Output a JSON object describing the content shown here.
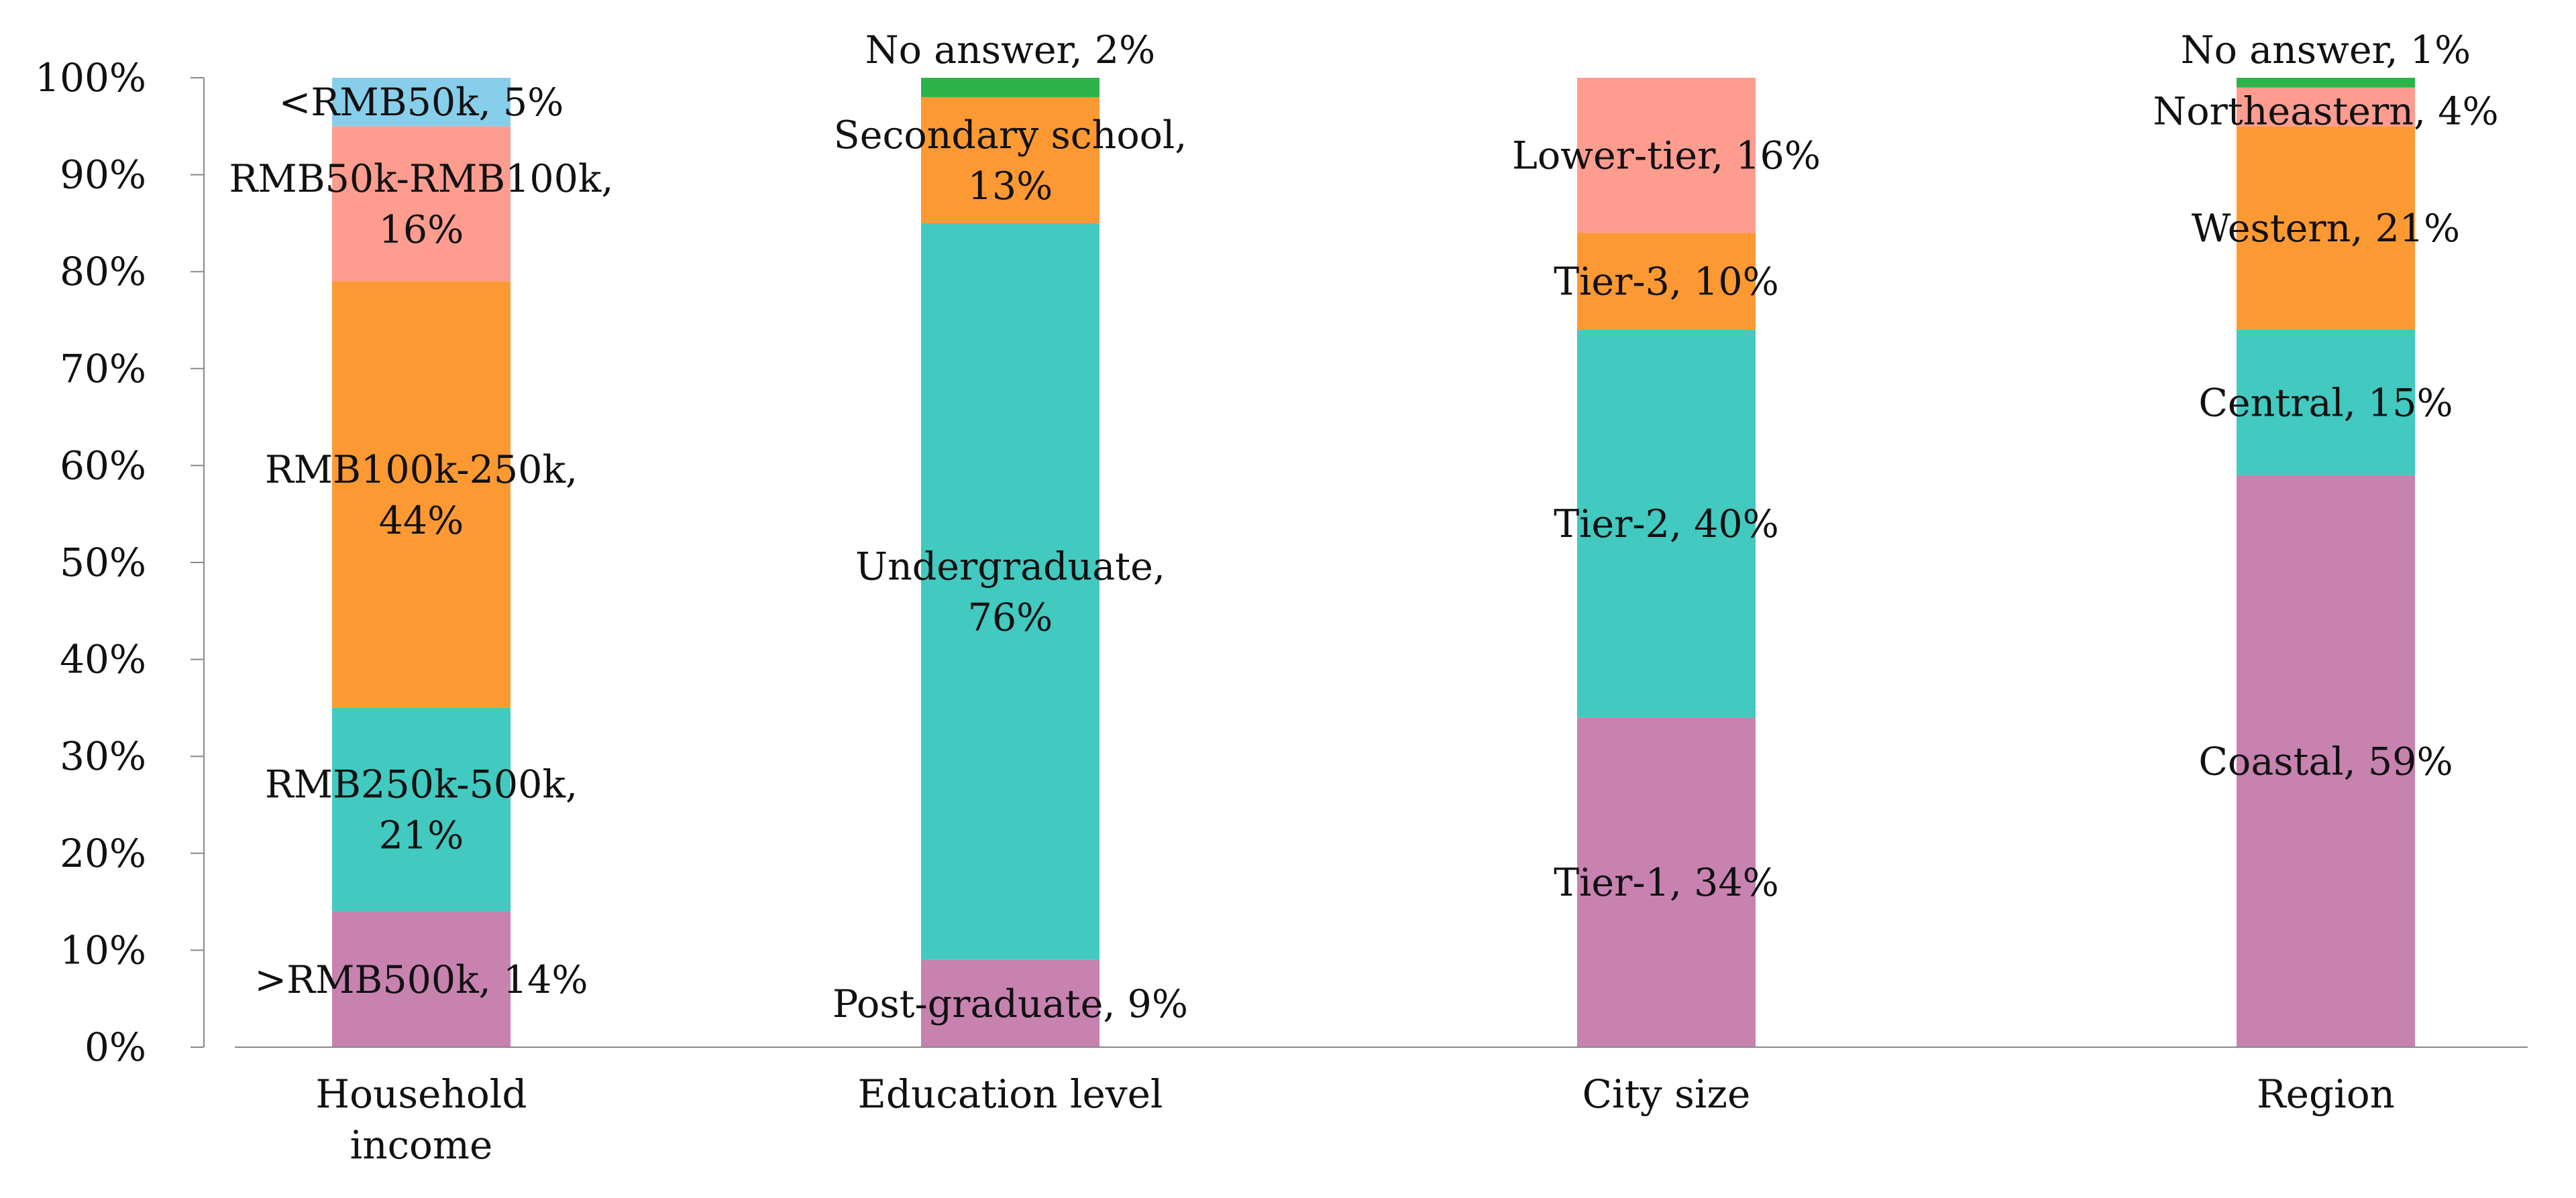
{
  "chart_data": {
    "type": "bar",
    "stacked": true,
    "percent": true,
    "ylim": [
      0,
      100
    ],
    "yticks": [
      "0%",
      "10%",
      "20%",
      "30%",
      "40%",
      "50%",
      "60%",
      "70%",
      "80%",
      "90%",
      "100%"
    ],
    "grid": false,
    "legend": "none",
    "categories": [
      {
        "label": [
          "Household",
          "income"
        ],
        "segments": [
          {
            "name": ">RMB500k",
            "value": 14,
            "color": "#c882b0",
            "label": [
              ">RMB500k, 14%"
            ]
          },
          {
            "name": "RMB250k-500k",
            "value": 21,
            "color": "#42c9c0",
            "label": [
              "RMB250k-500k,",
              "21%"
            ]
          },
          {
            "name": "RMB100k-250k",
            "value": 44,
            "color": "#fd9933",
            "label": [
              "RMB100k-250k,",
              "44%"
            ]
          },
          {
            "name": "RMB50k-RMB100k",
            "value": 16,
            "color": "#fe9c90",
            "label": [
              "RMB50k-RMB100k,",
              "16%"
            ]
          },
          {
            "name": "<RMB50k",
            "value": 5,
            "color": "#87ceeb",
            "label": [
              "<RMB50k, 5%"
            ]
          }
        ]
      },
      {
        "label": [
          "Education level"
        ],
        "segments": [
          {
            "name": "Post-graduate",
            "value": 9,
            "color": "#c882b0",
            "label": [
              "Post-graduate, 9%"
            ]
          },
          {
            "name": "Undergraduate",
            "value": 76,
            "color": "#42c9c0",
            "label": [
              "Undergraduate,",
              "76%"
            ]
          },
          {
            "name": "Secondary school",
            "value": 13,
            "color": "#fd9933",
            "label": [
              "Secondary school,",
              "13%"
            ]
          },
          {
            "name": "No answer",
            "value": 2,
            "color": "#2cb34a",
            "label": [
              "No answer, 2%"
            ]
          }
        ]
      },
      {
        "label": [
          "City size"
        ],
        "segments": [
          {
            "name": "Tier-1",
            "value": 34,
            "color": "#c882b0",
            "label": [
              "Tier-1, 34%"
            ]
          },
          {
            "name": "Tier-2",
            "value": 40,
            "color": "#42c9c0",
            "label": [
              "Tier-2, 40%"
            ]
          },
          {
            "name": "Tier-3",
            "value": 10,
            "color": "#fd9933",
            "label": [
              "Tier-3, 10%"
            ]
          },
          {
            "name": "Lower-tier",
            "value": 16,
            "color": "#fe9c90",
            "label": [
              "Lower-tier, 16%"
            ]
          }
        ]
      },
      {
        "label": [
          "Region"
        ],
        "segments": [
          {
            "name": "Coastal",
            "value": 59,
            "color": "#c882b0",
            "label": [
              "Coastal, 59%"
            ]
          },
          {
            "name": "Central",
            "value": 15,
            "color": "#42c9c0",
            "label": [
              "Central, 15%"
            ]
          },
          {
            "name": "Western",
            "value": 21,
            "color": "#fd9933",
            "label": [
              "Western, 21%"
            ]
          },
          {
            "name": "Northeastern",
            "value": 4,
            "color": "#fe9c90",
            "label": [
              "Northeastern, 4%"
            ]
          },
          {
            "name": "No answer",
            "value": 1,
            "color": "#2cb34a",
            "label": [
              "No answer, 1%"
            ]
          }
        ]
      }
    ]
  }
}
